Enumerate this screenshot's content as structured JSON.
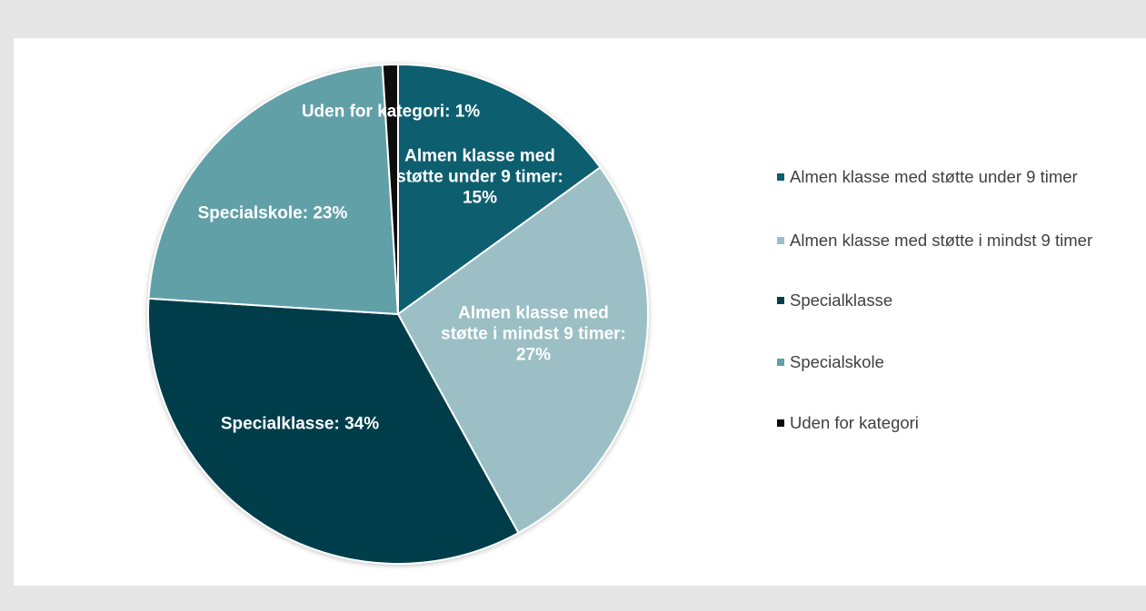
{
  "chart_data": {
    "type": "pie",
    "categories": [
      "Almen klasse med støtte under 9 timer",
      "Almen klasse med støtte i mindst 9 timer",
      "Specialklasse",
      "Specialskole",
      "Uden for kategori"
    ],
    "values": [
      15,
      27,
      34,
      23,
      1
    ],
    "value_labels": [
      "Almen klasse med støtte under 9 timer: 15%",
      "Almen klasse med støtte i mindst 9 timer: 27%",
      "Specialklasse: 34%",
      "Specialskole: 23%",
      "Uden for kategori: 1%"
    ],
    "colors": [
      "#075f70",
      "#9bbfc5",
      "#023d4b",
      "#62a0a8",
      "#0a0a0a"
    ],
    "legend": "right"
  }
}
